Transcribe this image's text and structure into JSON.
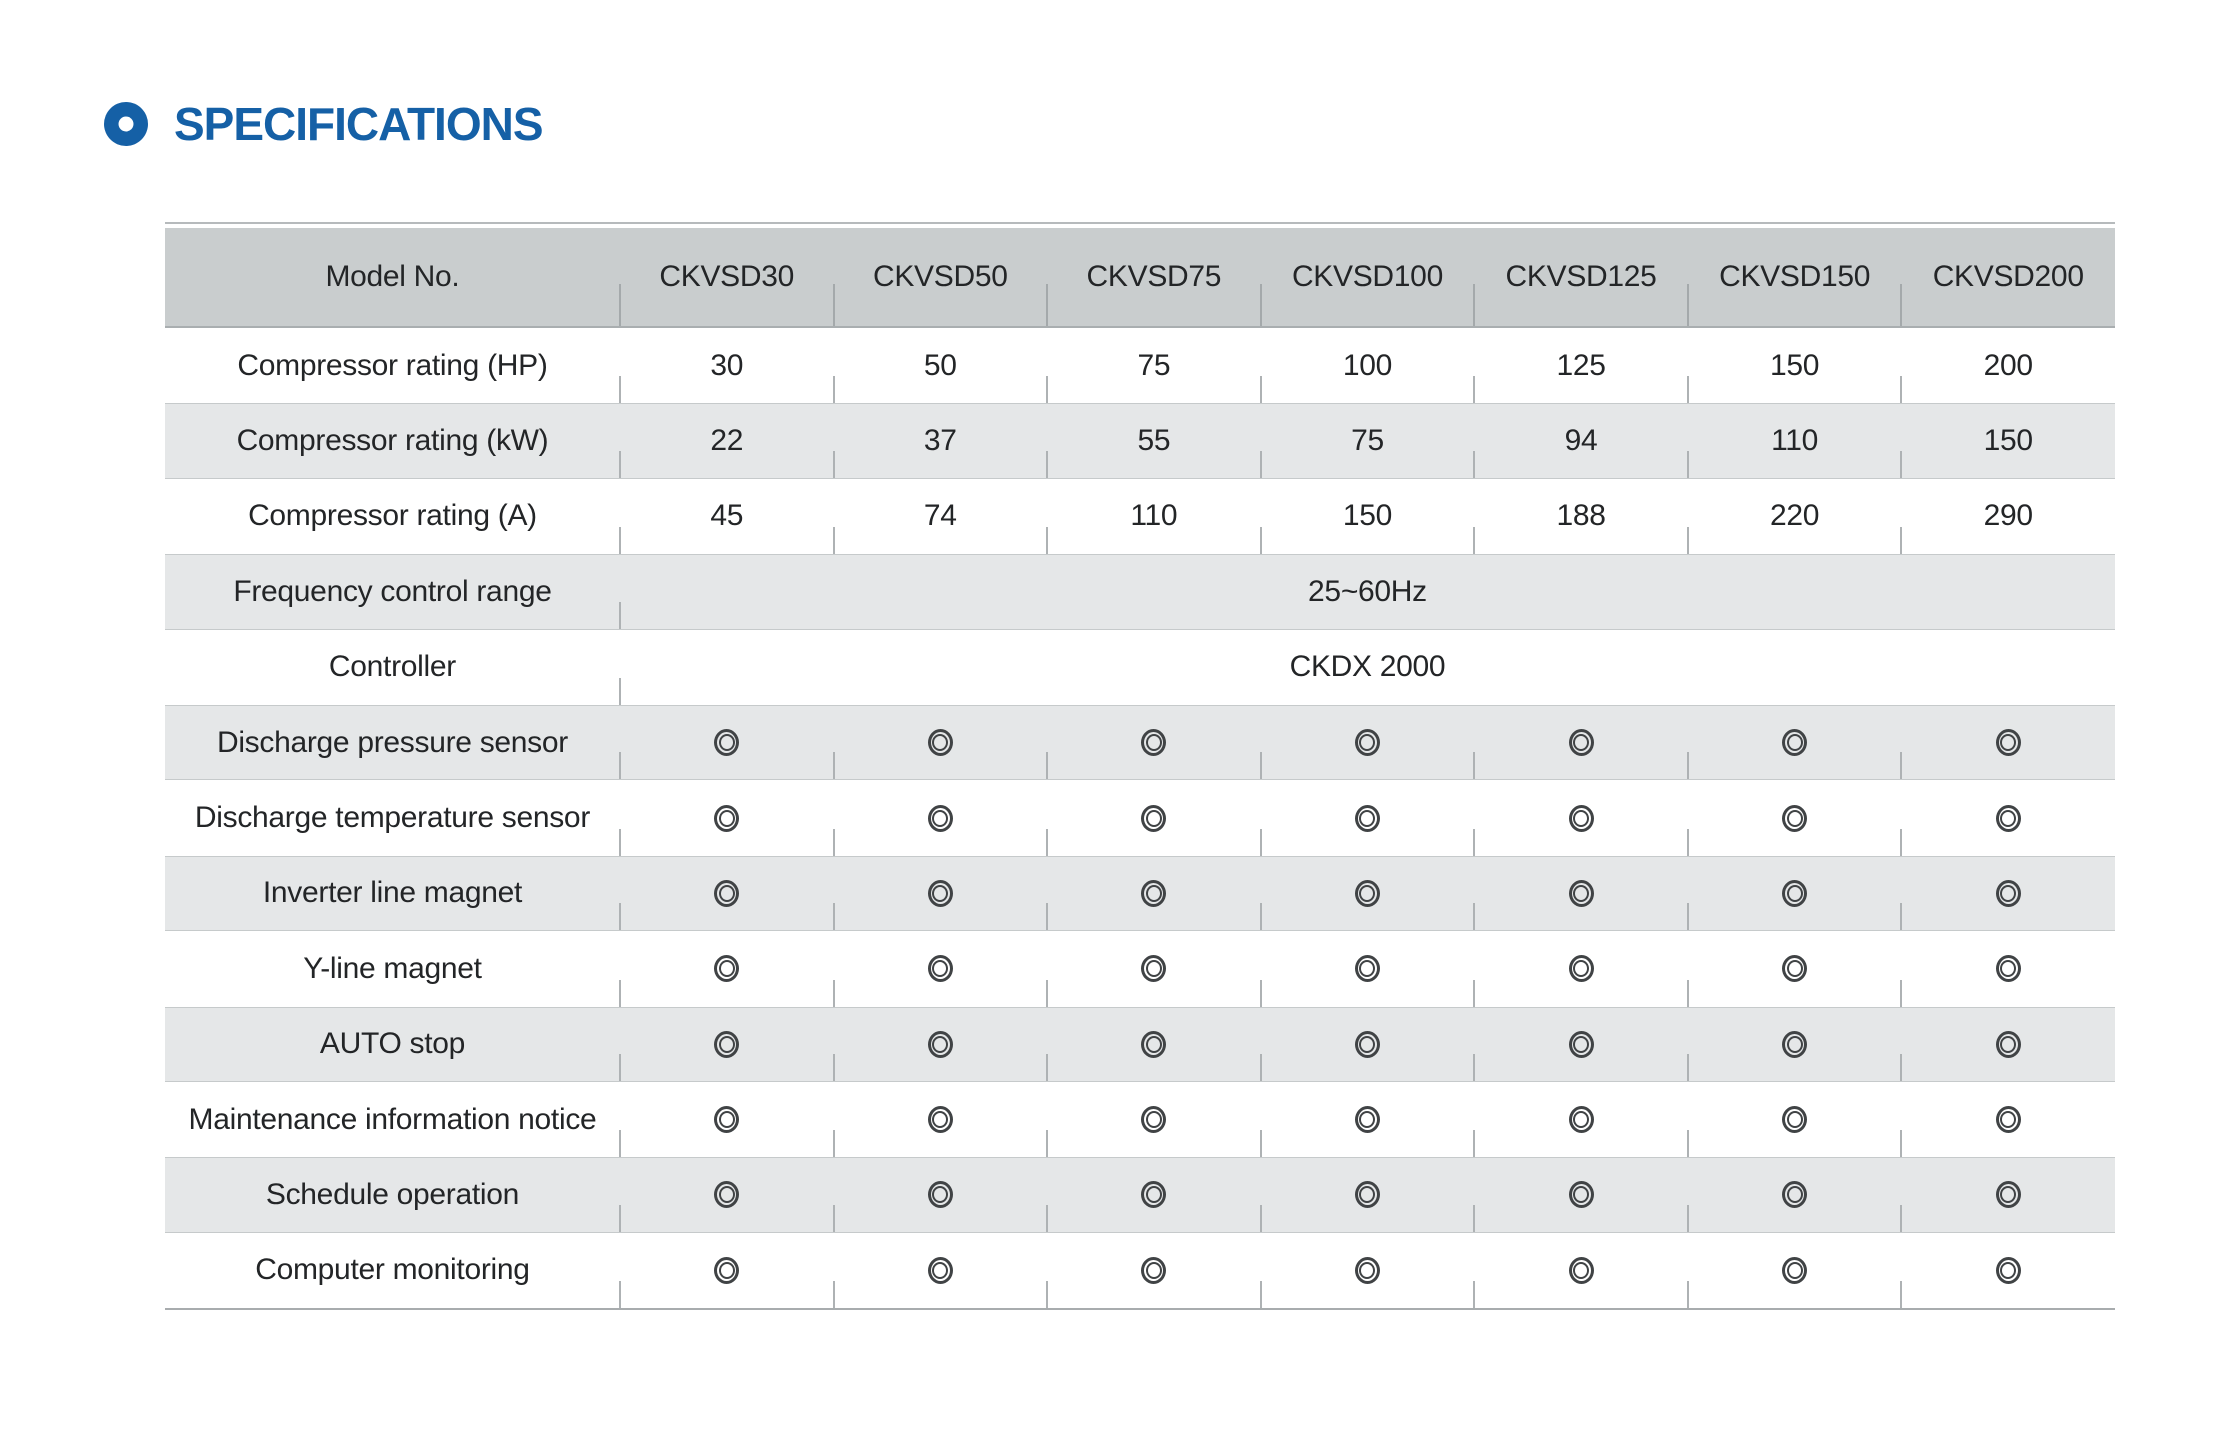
{
  "title": {
    "text": "SPECIFICATIONS",
    "accent_color": "#1560a6",
    "bullet_icon": "donut-circle"
  },
  "colors": {
    "header_bg": "#c9cdce",
    "shade_row_bg": "#e5e7e8",
    "rule_line": "#a9aeb0",
    "tick_line": "#aeb2b4",
    "text": "#232527"
  },
  "table": {
    "header": {
      "label": "Model No.",
      "models": [
        "CKVSD30",
        "CKVSD50",
        "CKVSD75",
        "CKVSD100",
        "CKVSD125",
        "CKVSD150",
        "CKVSD200"
      ]
    },
    "feature_symbol": "◎",
    "rows": [
      {
        "label": "Compressor rating (HP)",
        "type": "values",
        "shade": false,
        "values": [
          "30",
          "50",
          "75",
          "100",
          "125",
          "150",
          "200"
        ]
      },
      {
        "label": "Compressor rating (kW)",
        "type": "values",
        "shade": true,
        "values": [
          "22",
          "37",
          "55",
          "75",
          "94",
          "110",
          "150"
        ]
      },
      {
        "label": "Compressor rating (A)",
        "type": "values",
        "shade": false,
        "values": [
          "45",
          "74",
          "110",
          "150",
          "188",
          "220",
          "290"
        ]
      },
      {
        "label": "Frequency control range",
        "type": "span",
        "shade": true,
        "value": "25~60Hz"
      },
      {
        "label": "Controller",
        "type": "span",
        "shade": false,
        "value": "CKDX 2000"
      },
      {
        "label": "Discharge pressure sensor",
        "type": "values",
        "shade": true,
        "values": [
          "◎",
          "◎",
          "◎",
          "◎",
          "◎",
          "◎",
          "◎"
        ]
      },
      {
        "label": "Discharge temperature sensor",
        "type": "values",
        "shade": false,
        "values": [
          "◎",
          "◎",
          "◎",
          "◎",
          "◎",
          "◎",
          "◎"
        ]
      },
      {
        "label": "Inverter line magnet",
        "type": "values",
        "shade": true,
        "values": [
          "◎",
          "◎",
          "◎",
          "◎",
          "◎",
          "◎",
          "◎"
        ]
      },
      {
        "label": "Y-line magnet",
        "type": "values",
        "shade": false,
        "values": [
          "◎",
          "◎",
          "◎",
          "◎",
          "◎",
          "◎",
          "◎"
        ]
      },
      {
        "label": "AUTO stop",
        "type": "values",
        "shade": true,
        "values": [
          "◎",
          "◎",
          "◎",
          "◎",
          "◎",
          "◎",
          "◎"
        ]
      },
      {
        "label": "Maintenance information notice",
        "type": "values",
        "shade": false,
        "values": [
          "◎",
          "◎",
          "◎",
          "◎",
          "◎",
          "◎",
          "◎"
        ]
      },
      {
        "label": "Schedule operation",
        "type": "values",
        "shade": true,
        "values": [
          "◎",
          "◎",
          "◎",
          "◎",
          "◎",
          "◎",
          "◎"
        ]
      },
      {
        "label": "Computer monitoring",
        "type": "values",
        "shade": false,
        "values": [
          "◎",
          "◎",
          "◎",
          "◎",
          "◎",
          "◎",
          "◎"
        ]
      }
    ]
  }
}
